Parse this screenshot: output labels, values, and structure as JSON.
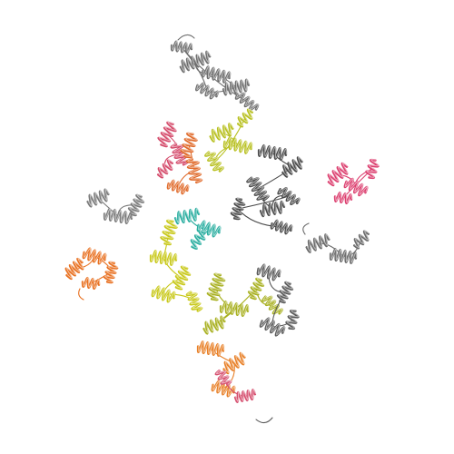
{
  "image": {
    "kind": "protein-cartoon-rendering",
    "background": "#ffffff",
    "style": "ribbon cartoon, alpha-helix dominated, multi-chain assembly"
  },
  "chains": [
    {
      "id": "grey-top",
      "color": "#6e6e6e"
    },
    {
      "id": "pink-upper",
      "color": "#d44a6a"
    },
    {
      "id": "orange-upper",
      "color": "#e06a2a"
    },
    {
      "id": "olive-upper",
      "color": "#b8c020"
    },
    {
      "id": "dark-grey-center",
      "color": "#4a4a4a"
    },
    {
      "id": "pink-right",
      "color": "#dc4070"
    },
    {
      "id": "grey-left",
      "color": "#7a7a7a"
    },
    {
      "id": "teal-center",
      "color": "#2aaea0"
    },
    {
      "id": "orange-left",
      "color": "#e87020"
    },
    {
      "id": "grey-right",
      "color": "#6a6a6a"
    },
    {
      "id": "yellow-lower",
      "color": "#c8c818"
    },
    {
      "id": "lime-lower",
      "color": "#a8b020"
    },
    {
      "id": "grey-lower",
      "color": "#5a5a5a"
    },
    {
      "id": "orange-bottom",
      "color": "#e88028"
    },
    {
      "id": "pink-bottom",
      "color": "#d65070"
    }
  ]
}
